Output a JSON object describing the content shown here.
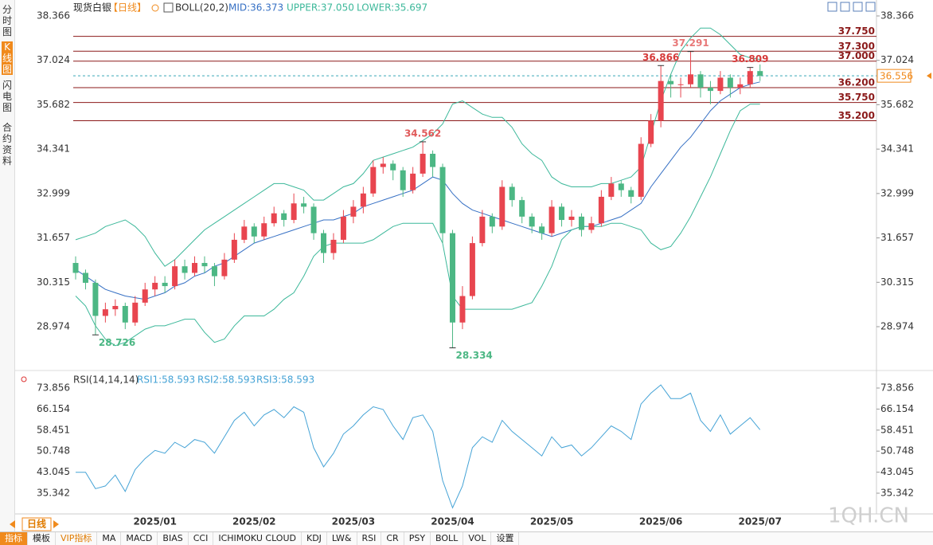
{
  "sidebar": [
    "分时图",
    "K线图",
    "闪电图",
    "合约资料"
  ],
  "period_tab": "日线",
  "toolbar": [
    "指标",
    "模板",
    "VIP指标",
    "MA",
    "MACD",
    "BIAS",
    "CCI",
    "ICHIMOKU CLOUD",
    "KDJ",
    "LW&",
    "RSI",
    "CR",
    "PSY",
    "BOLL",
    "VOL",
    "设置"
  ],
  "watermark": "1QH.CN",
  "chart_data": [
    {
      "type": "candlestick",
      "title": "现货白银",
      "period": "【日线】",
      "indicator_legend": [
        "BOLL(20,2)",
        "MID:36.373",
        "UPPER:37.050",
        "LOWER:35.697"
      ],
      "categories": [
        null,
        null,
        null,
        null,
        null,
        null,
        null,
        null,
        "2025/01",
        null,
        null,
        null,
        null,
        null,
        null,
        null,
        null,
        null,
        "2025/02",
        null,
        null,
        null,
        null,
        null,
        null,
        null,
        null,
        null,
        "2025/03",
        null,
        null,
        null,
        null,
        null,
        null,
        null,
        null,
        null,
        "2025/04",
        null,
        null,
        null,
        null,
        null,
        null,
        null,
        null,
        null,
        "2025/05",
        null,
        null,
        null,
        null,
        null,
        null,
        null,
        null,
        null,
        null,
        "2025/06",
        null,
        null,
        null,
        null,
        null,
        null,
        null,
        null,
        null,
        "2025/07"
      ],
      "candles": [
        [
          30.9,
          31.1,
          30.4,
          30.6
        ],
        [
          30.6,
          30.7,
          30.1,
          30.3
        ],
        [
          30.3,
          30.4,
          28.726,
          29.3
        ],
        [
          29.3,
          29.7,
          29.1,
          29.5
        ],
        [
          29.5,
          29.8,
          29.3,
          29.6
        ],
        [
          29.6,
          29.7,
          28.9,
          29.1
        ],
        [
          29.1,
          29.9,
          29.0,
          29.7
        ],
        [
          29.7,
          30.3,
          29.6,
          30.1
        ],
        [
          30.1,
          30.5,
          29.9,
          30.3
        ],
        [
          30.3,
          30.5,
          30.0,
          30.2
        ],
        [
          30.2,
          31.0,
          30.1,
          30.8
        ],
        [
          30.8,
          31.0,
          30.4,
          30.6
        ],
        [
          30.6,
          31.1,
          30.5,
          30.9
        ],
        [
          30.9,
          31.1,
          30.6,
          30.8
        ],
        [
          30.8,
          30.9,
          30.2,
          30.5
        ],
        [
          30.5,
          31.2,
          30.4,
          31.0
        ],
        [
          31.0,
          31.8,
          30.9,
          31.6
        ],
        [
          31.6,
          32.2,
          31.5,
          32.0
        ],
        [
          32.0,
          32.1,
          31.5,
          31.7
        ],
        [
          31.7,
          32.3,
          31.6,
          32.1
        ],
        [
          32.1,
          32.6,
          32.0,
          32.4
        ],
        [
          32.4,
          32.5,
          32.0,
          32.2
        ],
        [
          32.2,
          33.0,
          32.1,
          32.7
        ],
        [
          32.7,
          32.9,
          32.4,
          32.6
        ],
        [
          32.6,
          32.7,
          31.6,
          31.8
        ],
        [
          31.8,
          31.9,
          30.9,
          31.2
        ],
        [
          31.2,
          31.8,
          31.0,
          31.6
        ],
        [
          31.6,
          32.5,
          31.5,
          32.3
        ],
        [
          32.3,
          32.8,
          32.1,
          32.6
        ],
        [
          32.6,
          33.2,
          32.4,
          33.0
        ],
        [
          33.0,
          34.0,
          32.9,
          33.8
        ],
        [
          33.8,
          34.1,
          33.6,
          33.9
        ],
        [
          33.9,
          34.0,
          33.4,
          33.7
        ],
        [
          33.7,
          33.8,
          32.9,
          33.1
        ],
        [
          33.1,
          33.8,
          33.0,
          33.6
        ],
        [
          33.6,
          34.562,
          33.5,
          34.2
        ],
        [
          34.2,
          34.3,
          33.5,
          33.8
        ],
        [
          33.8,
          33.9,
          31.5,
          31.8
        ],
        [
          31.8,
          31.9,
          28.334,
          29.1
        ],
        [
          29.1,
          30.2,
          28.9,
          29.9
        ],
        [
          29.9,
          31.7,
          29.8,
          31.5
        ],
        [
          31.5,
          32.5,
          31.4,
          32.3
        ],
        [
          32.3,
          32.4,
          31.8,
          32.0
        ],
        [
          32.0,
          33.4,
          31.9,
          33.2
        ],
        [
          33.2,
          33.3,
          32.6,
          32.8
        ],
        [
          32.8,
          32.9,
          32.1,
          32.3
        ],
        [
          32.3,
          32.4,
          31.8,
          32.0
        ],
        [
          32.0,
          32.1,
          31.6,
          31.8
        ],
        [
          31.8,
          32.8,
          31.7,
          32.6
        ],
        [
          32.6,
          32.7,
          32.0,
          32.2
        ],
        [
          32.2,
          32.5,
          32.0,
          32.3
        ],
        [
          32.3,
          32.4,
          31.7,
          31.9
        ],
        [
          31.9,
          32.3,
          31.8,
          32.1
        ],
        [
          32.1,
          33.1,
          32.0,
          32.9
        ],
        [
          32.9,
          33.5,
          32.8,
          33.3
        ],
        [
          33.3,
          33.4,
          32.9,
          33.1
        ],
        [
          33.1,
          33.2,
          32.7,
          32.9
        ],
        [
          32.9,
          34.7,
          32.8,
          34.5
        ],
        [
          34.5,
          35.4,
          34.4,
          35.2
        ],
        [
          35.2,
          36.866,
          35.0,
          36.4
        ],
        [
          36.4,
          36.6,
          35.9,
          36.3
        ],
        [
          36.3,
          36.5,
          35.9,
          36.3
        ],
        [
          36.3,
          37.291,
          36.2,
          36.6
        ],
        [
          36.6,
          36.7,
          35.9,
          36.2
        ],
        [
          36.2,
          36.4,
          35.7,
          36.1
        ],
        [
          36.1,
          36.7,
          36.0,
          36.5
        ],
        [
          36.5,
          36.6,
          35.9,
          36.2
        ],
        [
          36.2,
          36.5,
          36.0,
          36.3
        ],
        [
          36.3,
          36.809,
          36.2,
          36.7
        ],
        [
          36.7,
          36.9,
          36.4,
          36.556
        ]
      ],
      "up_color": "#e8454f",
      "down_color": "#4cb784",
      "series": [
        {
          "color": "#3670c4",
          "values": [
            30.7,
            30.5,
            30.3,
            30.1,
            30.0,
            29.9,
            29.85,
            29.8,
            29.9,
            30.0,
            30.2,
            30.3,
            30.5,
            30.6,
            30.8,
            30.9,
            31.1,
            31.3,
            31.5,
            31.6,
            31.7,
            31.8,
            31.9,
            32.0,
            32.1,
            32.2,
            32.2,
            32.3,
            32.4,
            32.6,
            32.7,
            32.8,
            32.9,
            33.0,
            33.1,
            33.3,
            33.5,
            33.4,
            33.0,
            32.7,
            32.5,
            32.4,
            32.3,
            32.2,
            32.1,
            32.0,
            31.9,
            31.8,
            31.7,
            31.8,
            31.9,
            32.0,
            32.0,
            32.1,
            32.2,
            32.3,
            32.5,
            32.7,
            33.2,
            33.6,
            34.0,
            34.4,
            34.7,
            35.1,
            35.5,
            35.8,
            36.0,
            36.2,
            36.3,
            36.373
          ]
        },
        {
          "color": "#3cb89a",
          "values": [
            31.6,
            31.7,
            31.8,
            32.0,
            32.1,
            32.2,
            32.0,
            31.7,
            31.2,
            30.8,
            31.0,
            31.3,
            31.6,
            31.9,
            32.1,
            32.3,
            32.5,
            32.7,
            32.9,
            33.1,
            33.3,
            33.3,
            33.2,
            33.1,
            32.8,
            32.8,
            33.0,
            33.2,
            33.3,
            33.6,
            34.0,
            34.1,
            34.2,
            34.3,
            34.4,
            34.6,
            34.8,
            35.1,
            35.7,
            35.8,
            35.6,
            35.4,
            35.3,
            35.3,
            35.0,
            34.5,
            34.2,
            34.0,
            33.5,
            33.3,
            33.2,
            33.2,
            33.2,
            33.3,
            33.3,
            33.4,
            33.5,
            33.8,
            34.8,
            35.8,
            36.6,
            37.3,
            37.7,
            38.0,
            38.0,
            37.8,
            37.5,
            37.2,
            37.1,
            37.05
          ]
        },
        {
          "color": "#3cb89a",
          "values": [
            29.9,
            29.6,
            29.0,
            28.6,
            28.4,
            28.5,
            28.7,
            28.9,
            29.0,
            29.0,
            29.1,
            29.2,
            29.2,
            28.8,
            28.5,
            28.6,
            29.0,
            29.3,
            29.3,
            29.3,
            29.5,
            29.8,
            30.0,
            30.5,
            31.1,
            31.4,
            31.5,
            31.5,
            31.5,
            31.5,
            31.6,
            31.8,
            32.0,
            32.1,
            32.1,
            32.1,
            32.1,
            31.5,
            29.9,
            29.5,
            29.5,
            29.5,
            29.5,
            29.5,
            29.5,
            29.6,
            29.7,
            30.2,
            30.8,
            31.6,
            31.9,
            32.0,
            32.0,
            32.0,
            32.1,
            32.1,
            32.0,
            31.9,
            31.5,
            31.3,
            31.4,
            31.8,
            32.3,
            32.9,
            33.5,
            34.2,
            34.9,
            35.5,
            35.7,
            35.697
          ]
        }
      ],
      "annotations": [
        {
          "x": 2,
          "y": 28.726,
          "color": "#4cb784"
        },
        {
          "x": 38,
          "y": 28.334,
          "color": "#4cb784"
        },
        {
          "x": 35,
          "y": 34.562,
          "color": "#e05a5a"
        },
        {
          "x": 59,
          "y": 36.866,
          "color": "#d63a3a"
        },
        {
          "x": 62,
          "y": 37.291,
          "color": "#e87878"
        },
        {
          "x": 68,
          "y": 36.809,
          "color": "#d63a3a"
        }
      ],
      "levels": [
        {
          "value": 37.75,
          "label": "37.750"
        },
        {
          "value": 37.3,
          "label": "37.300"
        },
        {
          "value": 37.0,
          "label": "37.000"
        },
        {
          "value": 36.2,
          "label": "36.200"
        },
        {
          "value": 35.75,
          "label": "35.750"
        },
        {
          "value": 35.2,
          "label": "35.200"
        }
      ],
      "level_color": "#8b1a1a",
      "last_price": 36.556,
      "ylim": [
        27.89,
        38.655
      ],
      "yticks": [
        38.366,
        37.024,
        35.682,
        34.341,
        32.999,
        31.657,
        30.315,
        28.974
      ]
    },
    {
      "type": "line",
      "indicator_legend": [
        "RSI(14,14,14)",
        "RSI1:58.593",
        "RSI2:58.593",
        "RSI3:58.593"
      ],
      "series": [
        {
          "color": "#45a3d6",
          "values": [
            43,
            43,
            37,
            38,
            42,
            36,
            44,
            48,
            51,
            50,
            54,
            52,
            55,
            54,
            50,
            56,
            62,
            65,
            60,
            64,
            66,
            63,
            67,
            65,
            52,
            45,
            50,
            57,
            60,
            64,
            67,
            66,
            60,
            55,
            63,
            64,
            58,
            40,
            30,
            38,
            52,
            56,
            54,
            62,
            58,
            55,
            52,
            49,
            56,
            52,
            53,
            49,
            52,
            56,
            60,
            58,
            55,
            68,
            72,
            75,
            70,
            70,
            72,
            62,
            58,
            64,
            57,
            60,
            63,
            58.593
          ]
        }
      ],
      "ylim": [
        27.76,
        79.4
      ],
      "yticks": [
        73.856,
        66.154,
        58.451,
        50.748,
        43.045,
        35.342
      ]
    }
  ]
}
